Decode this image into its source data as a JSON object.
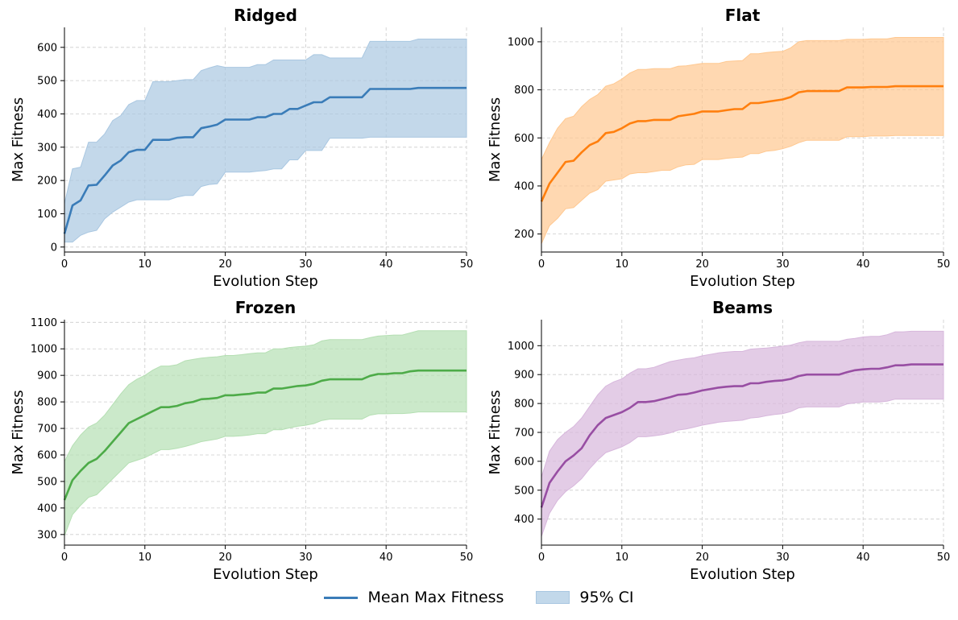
{
  "legend": {
    "mean_label": "Mean Max Fitness",
    "ci_label": "95% CI"
  },
  "chart_data": [
    {
      "type": "line",
      "title": "Ridged",
      "xlabel": "Evolution Step",
      "ylabel": "Max Fitness",
      "xlim": [
        0,
        50
      ],
      "ylim": [
        -15,
        660
      ],
      "xticks": [
        0,
        10,
        20,
        30,
        40,
        50
      ],
      "yticks": [
        0,
        100,
        200,
        300,
        400,
        500,
        600
      ],
      "grid": true,
      "color": "#3a7cb8",
      "fill_color": "#a9c7e1",
      "x": [
        0,
        1,
        2,
        3,
        4,
        5,
        6,
        7,
        8,
        9,
        10,
        11,
        12,
        13,
        14,
        15,
        16,
        17,
        18,
        19,
        20,
        21,
        22,
        23,
        24,
        25,
        26,
        27,
        28,
        29,
        30,
        31,
        32,
        33,
        34,
        35,
        36,
        37,
        38,
        39,
        40,
        41,
        42,
        43,
        44,
        45,
        46,
        47,
        48,
        49,
        50
      ],
      "series": [
        {
          "name": "Mean Max Fitness",
          "values": [
            40,
            125,
            140,
            185,
            187,
            215,
            245,
            260,
            285,
            292,
            292,
            322,
            322,
            322,
            328,
            330,
            330,
            357,
            362,
            368,
            383,
            383,
            383,
            383,
            390,
            390,
            400,
            400,
            415,
            415,
            425,
            435,
            435,
            450,
            450,
            450,
            450,
            450,
            475,
            475,
            475,
            475,
            475,
            475,
            478,
            478,
            478,
            478,
            478,
            478,
            478
          ]
        },
        {
          "name": "95% CI lower",
          "values": [
            15,
            15,
            35,
            45,
            50,
            85,
            105,
            120,
            135,
            142,
            142,
            142,
            142,
            142,
            150,
            155,
            155,
            182,
            188,
            190,
            225,
            225,
            225,
            225,
            228,
            230,
            235,
            235,
            262,
            262,
            290,
            290,
            290,
            327,
            327,
            327,
            327,
            327,
            330,
            330,
            330,
            330,
            330,
            330,
            330,
            330,
            330,
            330,
            330,
            330,
            330
          ]
        },
        {
          "name": "95% CI upper",
          "values": [
            130,
            235,
            240,
            315,
            315,
            340,
            380,
            395,
            428,
            440,
            440,
            497,
            497,
            497,
            500,
            503,
            503,
            530,
            538,
            545,
            540,
            540,
            540,
            540,
            548,
            548,
            562,
            562,
            562,
            562,
            562,
            578,
            578,
            568,
            568,
            568,
            568,
            568,
            618,
            618,
            618,
            618,
            618,
            618,
            625,
            625,
            625,
            625,
            625,
            625,
            625
          ]
        }
      ]
    },
    {
      "type": "line",
      "title": "Flat",
      "xlabel": "Evolution Step",
      "ylabel": "Max Fitness",
      "xlim": [
        0,
        50
      ],
      "ylim": [
        125,
        1060
      ],
      "xticks": [
        0,
        10,
        20,
        30,
        40,
        50
      ],
      "yticks": [
        200,
        400,
        600,
        800,
        1000
      ],
      "grid": true,
      "color": "#ff7f0e",
      "fill_color": "#ffc890",
      "x": [
        0,
        1,
        2,
        3,
        4,
        5,
        6,
        7,
        8,
        9,
        10,
        11,
        12,
        13,
        14,
        15,
        16,
        17,
        18,
        19,
        20,
        21,
        22,
        23,
        24,
        25,
        26,
        27,
        28,
        29,
        30,
        31,
        32,
        33,
        34,
        35,
        36,
        37,
        38,
        39,
        40,
        41,
        42,
        43,
        44,
        45,
        46,
        47,
        48,
        49,
        50
      ],
      "series": [
        {
          "name": "Mean Max Fitness",
          "values": [
            335,
            410,
            455,
            500,
            505,
            540,
            570,
            585,
            620,
            625,
            640,
            660,
            670,
            670,
            675,
            675,
            675,
            690,
            695,
            700,
            710,
            710,
            710,
            715,
            720,
            720,
            745,
            745,
            750,
            755,
            760,
            770,
            790,
            795,
            795,
            795,
            795,
            795,
            810,
            810,
            810,
            812,
            812,
            812,
            815,
            815,
            815,
            815,
            815,
            815,
            815
          ]
        },
        {
          "name": "95% CI lower",
          "values": [
            160,
            235,
            265,
            305,
            310,
            340,
            370,
            385,
            420,
            425,
            430,
            450,
            455,
            455,
            460,
            465,
            465,
            480,
            488,
            490,
            510,
            510,
            510,
            515,
            518,
            520,
            535,
            535,
            545,
            548,
            555,
            565,
            580,
            590,
            590,
            590,
            590,
            590,
            605,
            605,
            605,
            608,
            608,
            608,
            610,
            610,
            610,
            610,
            610,
            610,
            610
          ]
        },
        {
          "name": "95% CI upper",
          "values": [
            510,
            580,
            640,
            680,
            690,
            730,
            760,
            780,
            815,
            825,
            845,
            870,
            885,
            885,
            888,
            888,
            888,
            898,
            900,
            905,
            910,
            910,
            910,
            918,
            920,
            922,
            950,
            950,
            955,
            958,
            960,
            975,
            1000,
            1005,
            1005,
            1005,
            1005,
            1005,
            1010,
            1010,
            1010,
            1012,
            1012,
            1012,
            1018,
            1018,
            1018,
            1018,
            1018,
            1018,
            1018
          ]
        }
      ]
    },
    {
      "type": "line",
      "title": "Frozen",
      "xlabel": "Evolution Step",
      "ylabel": "Max Fitness",
      "xlim": [
        0,
        50
      ],
      "ylim": [
        260,
        1110
      ],
      "xticks": [
        0,
        10,
        20,
        30,
        40,
        50
      ],
      "yticks": [
        300,
        400,
        500,
        600,
        700,
        800,
        900,
        1000,
        1100
      ],
      "grid": true,
      "color": "#4dab48",
      "fill_color": "#b5dfb3",
      "x": [
        0,
        1,
        2,
        3,
        4,
        5,
        6,
        7,
        8,
        9,
        10,
        11,
        12,
        13,
        14,
        15,
        16,
        17,
        18,
        19,
        20,
        21,
        22,
        23,
        24,
        25,
        26,
        27,
        28,
        29,
        30,
        31,
        32,
        33,
        34,
        35,
        36,
        37,
        38,
        39,
        40,
        41,
        42,
        43,
        44,
        45,
        46,
        47,
        48,
        49,
        50
      ],
      "series": [
        {
          "name": "Mean Max Fitness",
          "values": [
            430,
            505,
            540,
            570,
            585,
            615,
            650,
            685,
            720,
            735,
            750,
            765,
            780,
            780,
            785,
            795,
            800,
            810,
            812,
            815,
            825,
            825,
            828,
            830,
            835,
            835,
            850,
            850,
            855,
            860,
            862,
            868,
            880,
            885,
            885,
            885,
            885,
            885,
            898,
            905,
            905,
            908,
            908,
            915,
            918,
            918,
            918,
            918,
            918,
            918,
            918
          ]
        },
        {
          "name": "95% CI lower",
          "values": [
            295,
            375,
            410,
            440,
            450,
            480,
            510,
            540,
            570,
            580,
            590,
            605,
            620,
            620,
            625,
            632,
            640,
            650,
            655,
            660,
            670,
            670,
            672,
            675,
            680,
            680,
            695,
            695,
            702,
            708,
            712,
            718,
            730,
            735,
            735,
            735,
            735,
            735,
            750,
            755,
            755,
            756,
            756,
            758,
            762,
            762,
            762,
            762,
            762,
            762,
            762
          ]
        },
        {
          "name": "95% CI upper",
          "values": [
            575,
            635,
            675,
            705,
            720,
            750,
            790,
            830,
            865,
            885,
            900,
            920,
            935,
            935,
            940,
            955,
            960,
            965,
            968,
            970,
            975,
            975,
            978,
            982,
            985,
            985,
            1000,
            1000,
            1005,
            1008,
            1010,
            1015,
            1030,
            1035,
            1035,
            1035,
            1035,
            1035,
            1042,
            1048,
            1050,
            1052,
            1052,
            1060,
            1068,
            1068,
            1068,
            1068,
            1068,
            1068,
            1068
          ]
        }
      ]
    },
    {
      "type": "line",
      "title": "Beams",
      "xlabel": "Evolution Step",
      "ylabel": "Max Fitness",
      "xlim": [
        0,
        50
      ],
      "ylim": [
        310,
        1090
      ],
      "xticks": [
        0,
        10,
        20,
        30,
        40,
        50
      ],
      "yticks": [
        400,
        500,
        600,
        700,
        800,
        900,
        1000
      ],
      "grid": true,
      "color": "#984ea3",
      "fill_color": "#d7b7dc",
      "x": [
        0,
        1,
        2,
        3,
        4,
        5,
        6,
        7,
        8,
        9,
        10,
        11,
        12,
        13,
        14,
        15,
        16,
        17,
        18,
        19,
        20,
        21,
        22,
        23,
        24,
        25,
        26,
        27,
        28,
        29,
        30,
        31,
        32,
        33,
        34,
        35,
        36,
        37,
        38,
        39,
        40,
        41,
        42,
        43,
        44,
        45,
        46,
        47,
        48,
        49,
        50
      ],
      "series": [
        {
          "name": "Mean Max Fitness",
          "values": [
            440,
            525,
            565,
            600,
            620,
            645,
            690,
            725,
            750,
            760,
            770,
            785,
            805,
            805,
            808,
            815,
            822,
            830,
            832,
            838,
            845,
            850,
            855,
            858,
            860,
            860,
            870,
            870,
            875,
            878,
            880,
            885,
            895,
            900,
            900,
            900,
            900,
            900,
            908,
            915,
            918,
            920,
            920,
            925,
            932,
            932,
            935,
            935,
            935,
            935,
            935
          ]
        },
        {
          "name": "95% CI lower",
          "values": [
            340,
            420,
            465,
            495,
            515,
            540,
            575,
            605,
            630,
            640,
            650,
            665,
            685,
            685,
            688,
            692,
            698,
            708,
            712,
            718,
            725,
            730,
            735,
            738,
            740,
            742,
            750,
            752,
            758,
            762,
            765,
            772,
            785,
            788,
            788,
            788,
            788,
            788,
            798,
            802,
            805,
            805,
            805,
            808,
            815,
            815,
            815,
            815,
            815,
            815,
            815
          ]
        },
        {
          "name": "95% CI upper",
          "values": [
            545,
            635,
            675,
            700,
            720,
            750,
            790,
            830,
            860,
            875,
            885,
            905,
            920,
            920,
            925,
            935,
            945,
            950,
            955,
            958,
            965,
            970,
            975,
            978,
            980,
            980,
            988,
            990,
            992,
            995,
            998,
            1002,
            1010,
            1015,
            1015,
            1015,
            1015,
            1015,
            1022,
            1025,
            1030,
            1032,
            1032,
            1038,
            1048,
            1048,
            1050,
            1050,
            1050,
            1050,
            1050
          ]
        }
      ]
    }
  ]
}
